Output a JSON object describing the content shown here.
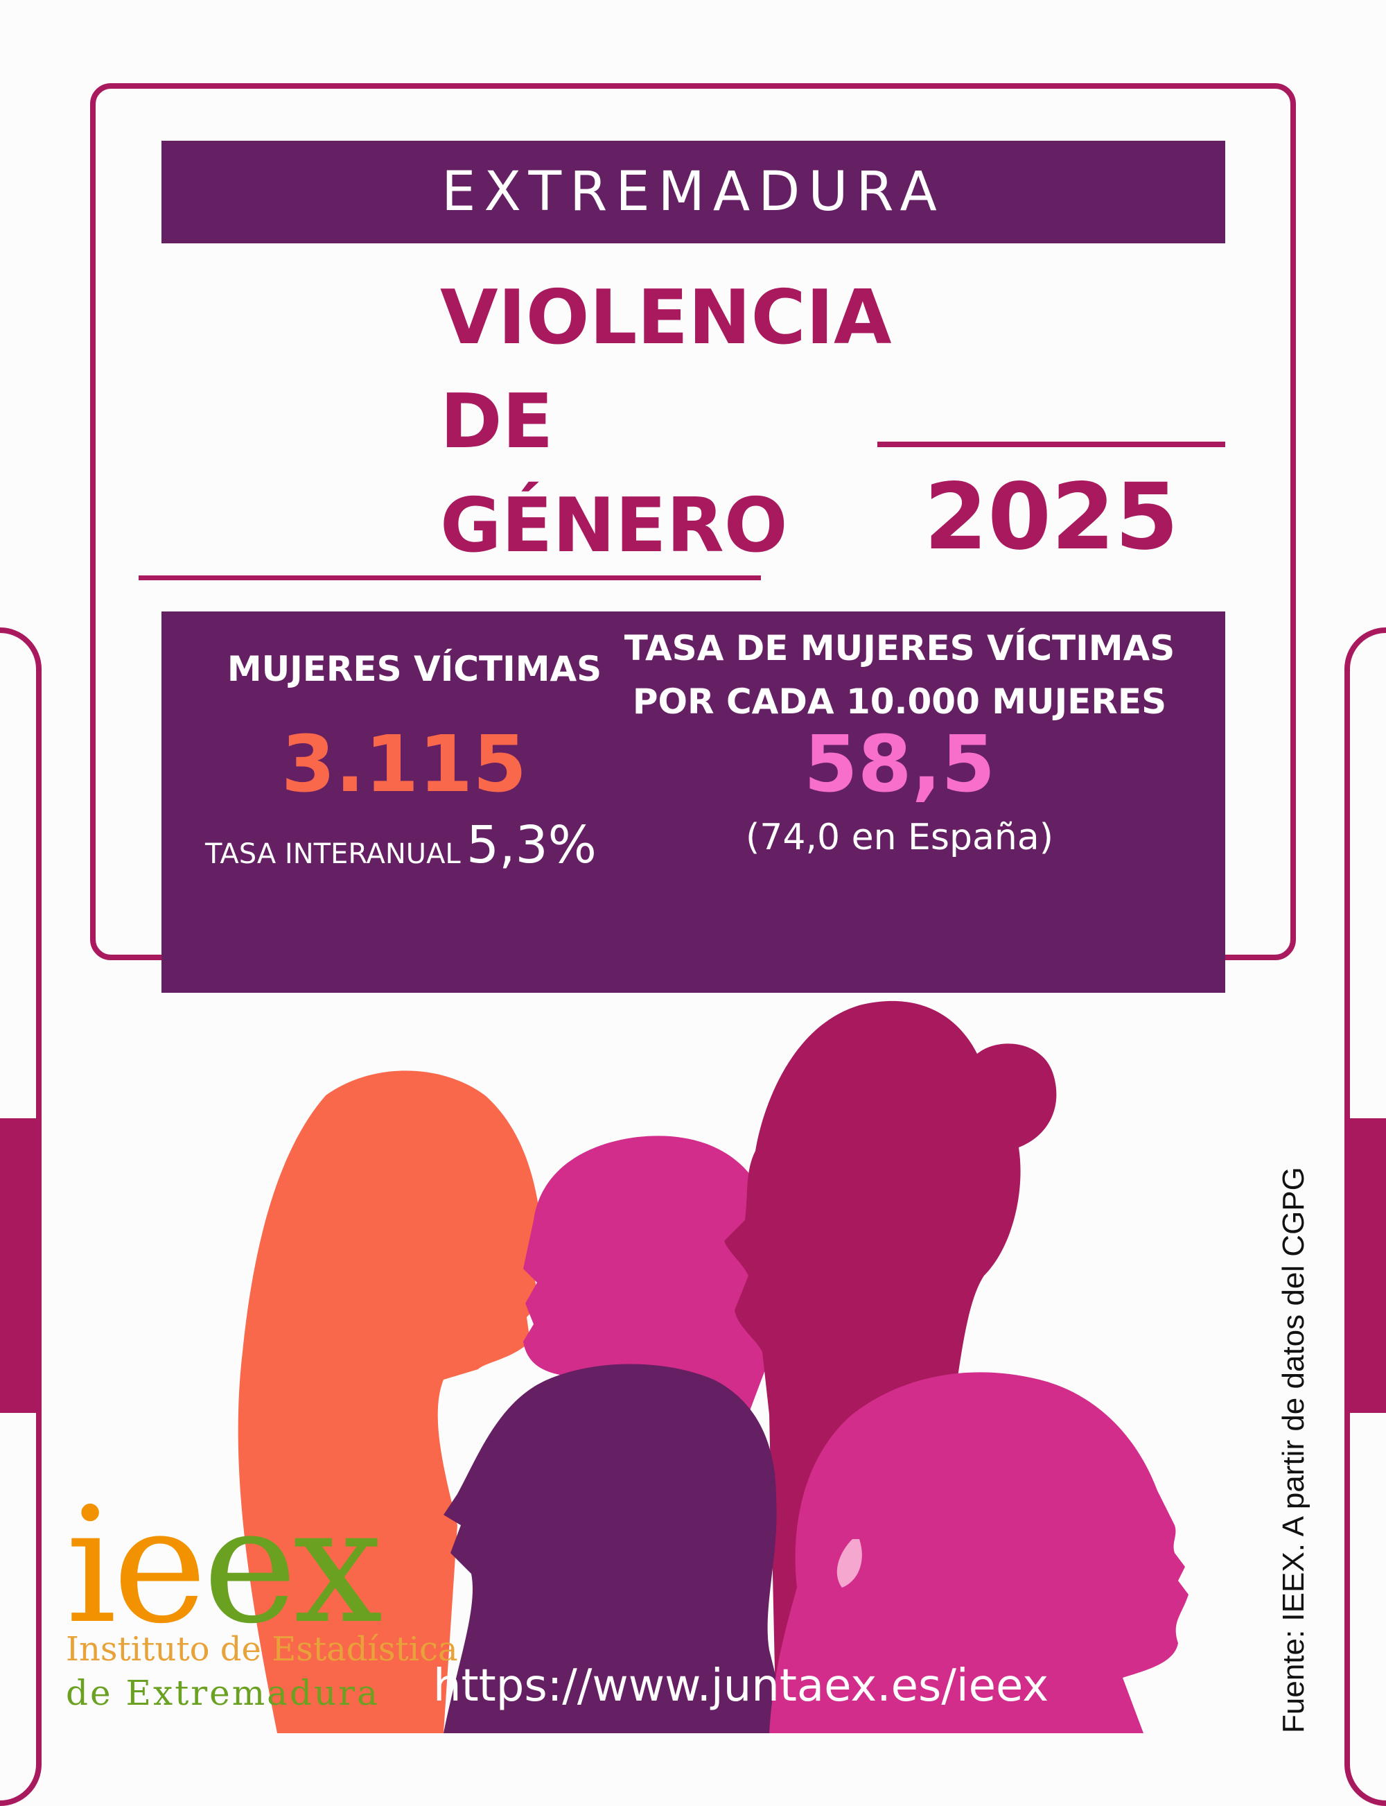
{
  "header": {
    "region": "EXTREMADURA",
    "title_lines": [
      "VIOLENCIA",
      "DE",
      "GÉNERO"
    ],
    "year": "2025"
  },
  "stats": {
    "victims": {
      "label": "MUJERES VÍCTIMAS",
      "value": "3.115",
      "annual_rate_label": "TASA INTERANUAL",
      "annual_rate_value": "5,3%"
    },
    "rate": {
      "label_lines": [
        "TASA DE MUJERES VÍCTIMAS",
        "POR CADA 10.000 MUJERES"
      ],
      "value": "58,5",
      "comparison": "(74,0 en España)"
    }
  },
  "logo": {
    "word": "ieex",
    "line1": "Instituto de Estadística",
    "line2": "de Extremadura"
  },
  "footer": {
    "url": "https://www.juntaex.es/ieex",
    "source": "Fuente: IEEX. A partir de  datos del CGPG"
  },
  "colors": {
    "magenta": "#a8195e",
    "purple": "#651f63",
    "coral": "#f9684a",
    "pink": "#f86fc9",
    "logo_orange": "#f39200",
    "logo_green": "#6aa121"
  }
}
